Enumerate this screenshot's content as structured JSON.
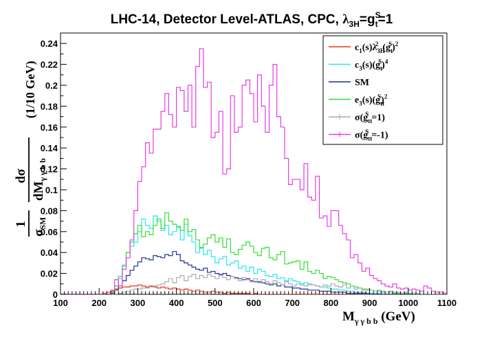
{
  "chart_data": {
    "type": "step",
    "title_parts": {
      "main": "LHC-14, Detector Level-ATLAS, CPC, ",
      "lambda": "λ",
      "lambda_sub": "3H",
      "eq": "=g",
      "g_sup": "S",
      "g_sub": "t",
      "tail": "=1"
    },
    "xlabel_parts": {
      "main": "M",
      "sub": "γ γ b b",
      "unit": " (GeV)"
    },
    "ylabel_parts": {
      "frac1_num": "1",
      "frac1_den": "σ",
      "frac1_den_sub": "SM",
      "frac2_num": "dσ",
      "frac2_den": "dM",
      "frac2_den_sub": "γ γ b b",
      "unit": "(1/10 GeV)"
    },
    "xlim": [
      100,
      1100
    ],
    "ylim": [
      0,
      0.25
    ],
    "x_ticks": [
      100,
      200,
      300,
      400,
      500,
      600,
      700,
      800,
      900,
      1000,
      1100
    ],
    "y_ticks": [
      0,
      0.02,
      0.04,
      0.06,
      0.08,
      0.1,
      0.12,
      0.14,
      0.16,
      0.18,
      0.2,
      0.22,
      0.24
    ],
    "x_bin_edges_start": 100,
    "bin_width": 10,
    "legend_position": "top-right",
    "series": [
      {
        "name_parts": [
          "c",
          "1",
          "(s)λ",
          "3H",
          "2",
          "(g",
          "t",
          "S",
          ")",
          "2"
        ],
        "legend_key": "c1",
        "color": "#e8331c",
        "values": [
          0,
          0,
          0,
          0,
          0,
          0,
          0,
          0,
          0,
          0,
          0,
          0.001,
          0.002,
          0.003,
          0.005,
          0.006,
          0.007,
          0.007,
          0.008,
          0.008,
          0.009,
          0.008,
          0.007,
          0.008,
          0.007,
          0.006,
          0.007,
          0.006,
          0.005,
          0.006,
          0.005,
          0.004,
          0.005,
          0.004,
          0.003,
          0.004,
          0.003,
          0.002,
          0.002,
          0.003,
          0.002,
          0.002,
          0.001,
          0.002,
          0.001,
          0.001,
          0.001,
          0.001,
          0.001,
          0,
          0.001,
          0,
          0,
          0,
          0,
          0,
          0,
          0,
          0,
          0,
          0,
          0,
          0,
          0,
          0,
          0,
          0,
          0,
          0,
          0,
          0,
          0,
          0,
          0,
          0,
          0,
          0,
          0,
          0,
          0,
          0,
          0,
          0,
          0,
          0,
          0,
          0,
          0,
          0,
          0,
          0,
          0,
          0,
          0,
          0,
          0,
          0,
          0,
          0,
          0
        ]
      },
      {
        "name_parts": [
          "c",
          "3",
          "(s)(g",
          "t",
          "S",
          ")",
          "4"
        ],
        "legend_key": "c3",
        "color": "#22e5f5",
        "values": [
          0,
          0,
          0,
          0,
          0,
          0,
          0,
          0,
          0,
          0,
          0,
          0,
          0,
          0.002,
          0.008,
          0.015,
          0.028,
          0.04,
          0.046,
          0.05,
          0.06,
          0.072,
          0.066,
          0.063,
          0.075,
          0.07,
          0.061,
          0.066,
          0.057,
          0.06,
          0.064,
          0.052,
          0.067,
          0.056,
          0.05,
          0.04,
          0.044,
          0.038,
          0.042,
          0.036,
          0.03,
          0.034,
          0.036,
          0.028,
          0.03,
          0.032,
          0.025,
          0.027,
          0.022,
          0.026,
          0.02,
          0.024,
          0.022,
          0.018,
          0.017,
          0.019,
          0.015,
          0.016,
          0.013,
          0.015,
          0.013,
          0.012,
          0.01,
          0.011,
          0.009,
          0.009,
          0.008,
          0.007,
          0.007,
          0.006,
          0.005,
          0.005,
          0.004,
          0.004,
          0.003,
          0.003,
          0.002,
          0.002,
          0.002,
          0.001,
          0.001,
          0.001,
          0.001,
          0,
          0,
          0,
          0,
          0,
          0,
          0,
          0,
          0,
          0,
          0,
          0,
          0,
          0,
          0,
          0,
          0
        ]
      },
      {
        "name_parts": [
          "SM"
        ],
        "legend_key": "sm",
        "color": "#1c2f8f",
        "values": [
          0,
          0,
          0,
          0,
          0,
          0,
          0,
          0,
          0,
          0,
          0,
          0,
          0,
          0.001,
          0.004,
          0.008,
          0.013,
          0.018,
          0.023,
          0.027,
          0.031,
          0.035,
          0.034,
          0.033,
          0.037,
          0.036,
          0.035,
          0.038,
          0.037,
          0.041,
          0.038,
          0.032,
          0.03,
          0.028,
          0.026,
          0.024,
          0.023,
          0.025,
          0.021,
          0.022,
          0.02,
          0.019,
          0.02,
          0.018,
          0.017,
          0.016,
          0.015,
          0.014,
          0.015,
          0.013,
          0.012,
          0.012,
          0.011,
          0.01,
          0.009,
          0.01,
          0.008,
          0.009,
          0.007,
          0.007,
          0.006,
          0.006,
          0.005,
          0.005,
          0.004,
          0.004,
          0.004,
          0.003,
          0.003,
          0.003,
          0.002,
          0.002,
          0.002,
          0.002,
          0.001,
          0.001,
          0.001,
          0.001,
          0.001,
          0.001,
          0,
          0,
          0,
          0,
          0,
          0,
          0,
          0,
          0,
          0,
          0,
          0,
          0,
          0,
          0,
          0,
          0,
          0,
          0,
          0
        ]
      },
      {
        "name_parts": [
          "e",
          "3",
          "(s)(g",
          "tt",
          "S",
          ")",
          "2"
        ],
        "legend_key": "e3",
        "color": "#2ee02e",
        "values": [
          0,
          0,
          0,
          0,
          0,
          0,
          0,
          0,
          0,
          0,
          0,
          0,
          0,
          0.002,
          0.008,
          0.017,
          0.027,
          0.04,
          0.05,
          0.058,
          0.066,
          0.055,
          0.06,
          0.057,
          0.066,
          0.072,
          0.063,
          0.078,
          0.07,
          0.067,
          0.065,
          0.061,
          0.072,
          0.06,
          0.062,
          0.052,
          0.045,
          0.048,
          0.054,
          0.057,
          0.05,
          0.054,
          0.045,
          0.053,
          0.04,
          0.038,
          0.043,
          0.047,
          0.05,
          0.046,
          0.04,
          0.037,
          0.044,
          0.045,
          0.035,
          0.033,
          0.038,
          0.041,
          0.029,
          0.03,
          0.031,
          0.032,
          0.024,
          0.031,
          0.022,
          0.02,
          0.023,
          0.02,
          0.015,
          0.017,
          0.016,
          0.014,
          0.012,
          0.011,
          0.01,
          0.008,
          0.007,
          0.006,
          0.005,
          0.004,
          0.004,
          0.003,
          0.003,
          0.002,
          0.002,
          0.002,
          0.001,
          0.001,
          0.001,
          0.001,
          0.001,
          0,
          0,
          0,
          0,
          0,
          0,
          0,
          0,
          0
        ]
      },
      {
        "name_parts": [
          "σ(g",
          "tt",
          "S",
          "=1)"
        ],
        "legend_key": "sig-plus",
        "color": "#aaaaaa",
        "values": [
          0,
          0,
          0,
          0,
          0,
          0,
          0,
          0,
          0,
          0,
          0,
          0,
          0,
          0,
          0,
          0.001,
          0.002,
          0.003,
          0.004,
          0.005,
          0.005,
          0.006,
          0.006,
          0.007,
          0.008,
          0.009,
          0.01,
          0.012,
          0.015,
          0.011,
          0.016,
          0.018,
          0.013,
          0.017,
          0.019,
          0.015,
          0.018,
          0.016,
          0.019,
          0.017,
          0.015,
          0.018,
          0.016,
          0.014,
          0.017,
          0.015,
          0.013,
          0.016,
          0.014,
          0.012,
          0.015,
          0.011,
          0.014,
          0.012,
          0.01,
          0.013,
          0.011,
          0.009,
          0.012,
          0.01,
          0.008,
          0.01,
          0.009,
          0.008,
          0.01,
          0.009,
          0.008,
          0.007,
          0.009,
          0.008,
          0.01,
          0.008,
          0.007,
          0.009,
          0.006,
          0.008,
          0.005,
          0.006,
          0.004,
          0.005,
          0.004,
          0.003,
          0.004,
          0.003,
          0.002,
          0.003,
          0.002,
          0.002,
          0.001,
          0.002,
          0.001,
          0.001,
          0.001,
          0,
          0,
          0,
          0,
          0,
          0,
          0
        ]
      },
      {
        "name_parts": [
          "σ(g",
          "tt",
          "S",
          "=-1)"
        ],
        "legend_key": "sig-minus",
        "color": "#e838e8",
        "values": [
          0,
          0,
          0,
          0,
          0,
          0,
          0,
          0,
          0,
          0,
          0,
          0,
          0,
          0.004,
          0.014,
          0.008,
          0.024,
          0.035,
          0.052,
          0.08,
          0.108,
          0.122,
          0.145,
          0.135,
          0.158,
          0.158,
          0.175,
          0.192,
          0.172,
          0.16,
          0.198,
          0.195,
          0.175,
          0.2,
          0.16,
          0.218,
          0.235,
          0.198,
          0.203,
          0.15,
          0.155,
          0.175,
          0.115,
          0.12,
          0.19,
          0.155,
          0.16,
          0.2,
          0.205,
          0.192,
          0.165,
          0.21,
          0.18,
          0.155,
          0.2,
          0.22,
          0.17,
          0.16,
          0.13,
          0.105,
          0.11,
          0.11,
          0.1,
          0.125,
          0.093,
          0.09,
          0.113,
          0.073,
          0.075,
          0.065,
          0.08,
          0.08,
          0.066,
          0.058,
          0.052,
          0.035,
          0.038,
          0.03,
          0.022,
          0.025,
          0.018,
          0.015,
          0.013,
          0.01,
          0.008,
          0.007,
          0.01,
          0.006,
          0.005,
          0.006,
          0.004,
          0.005,
          0.004,
          0.003,
          0.008,
          0.006,
          0.003,
          0.002,
          0.002,
          0.001
        ]
      }
    ]
  }
}
